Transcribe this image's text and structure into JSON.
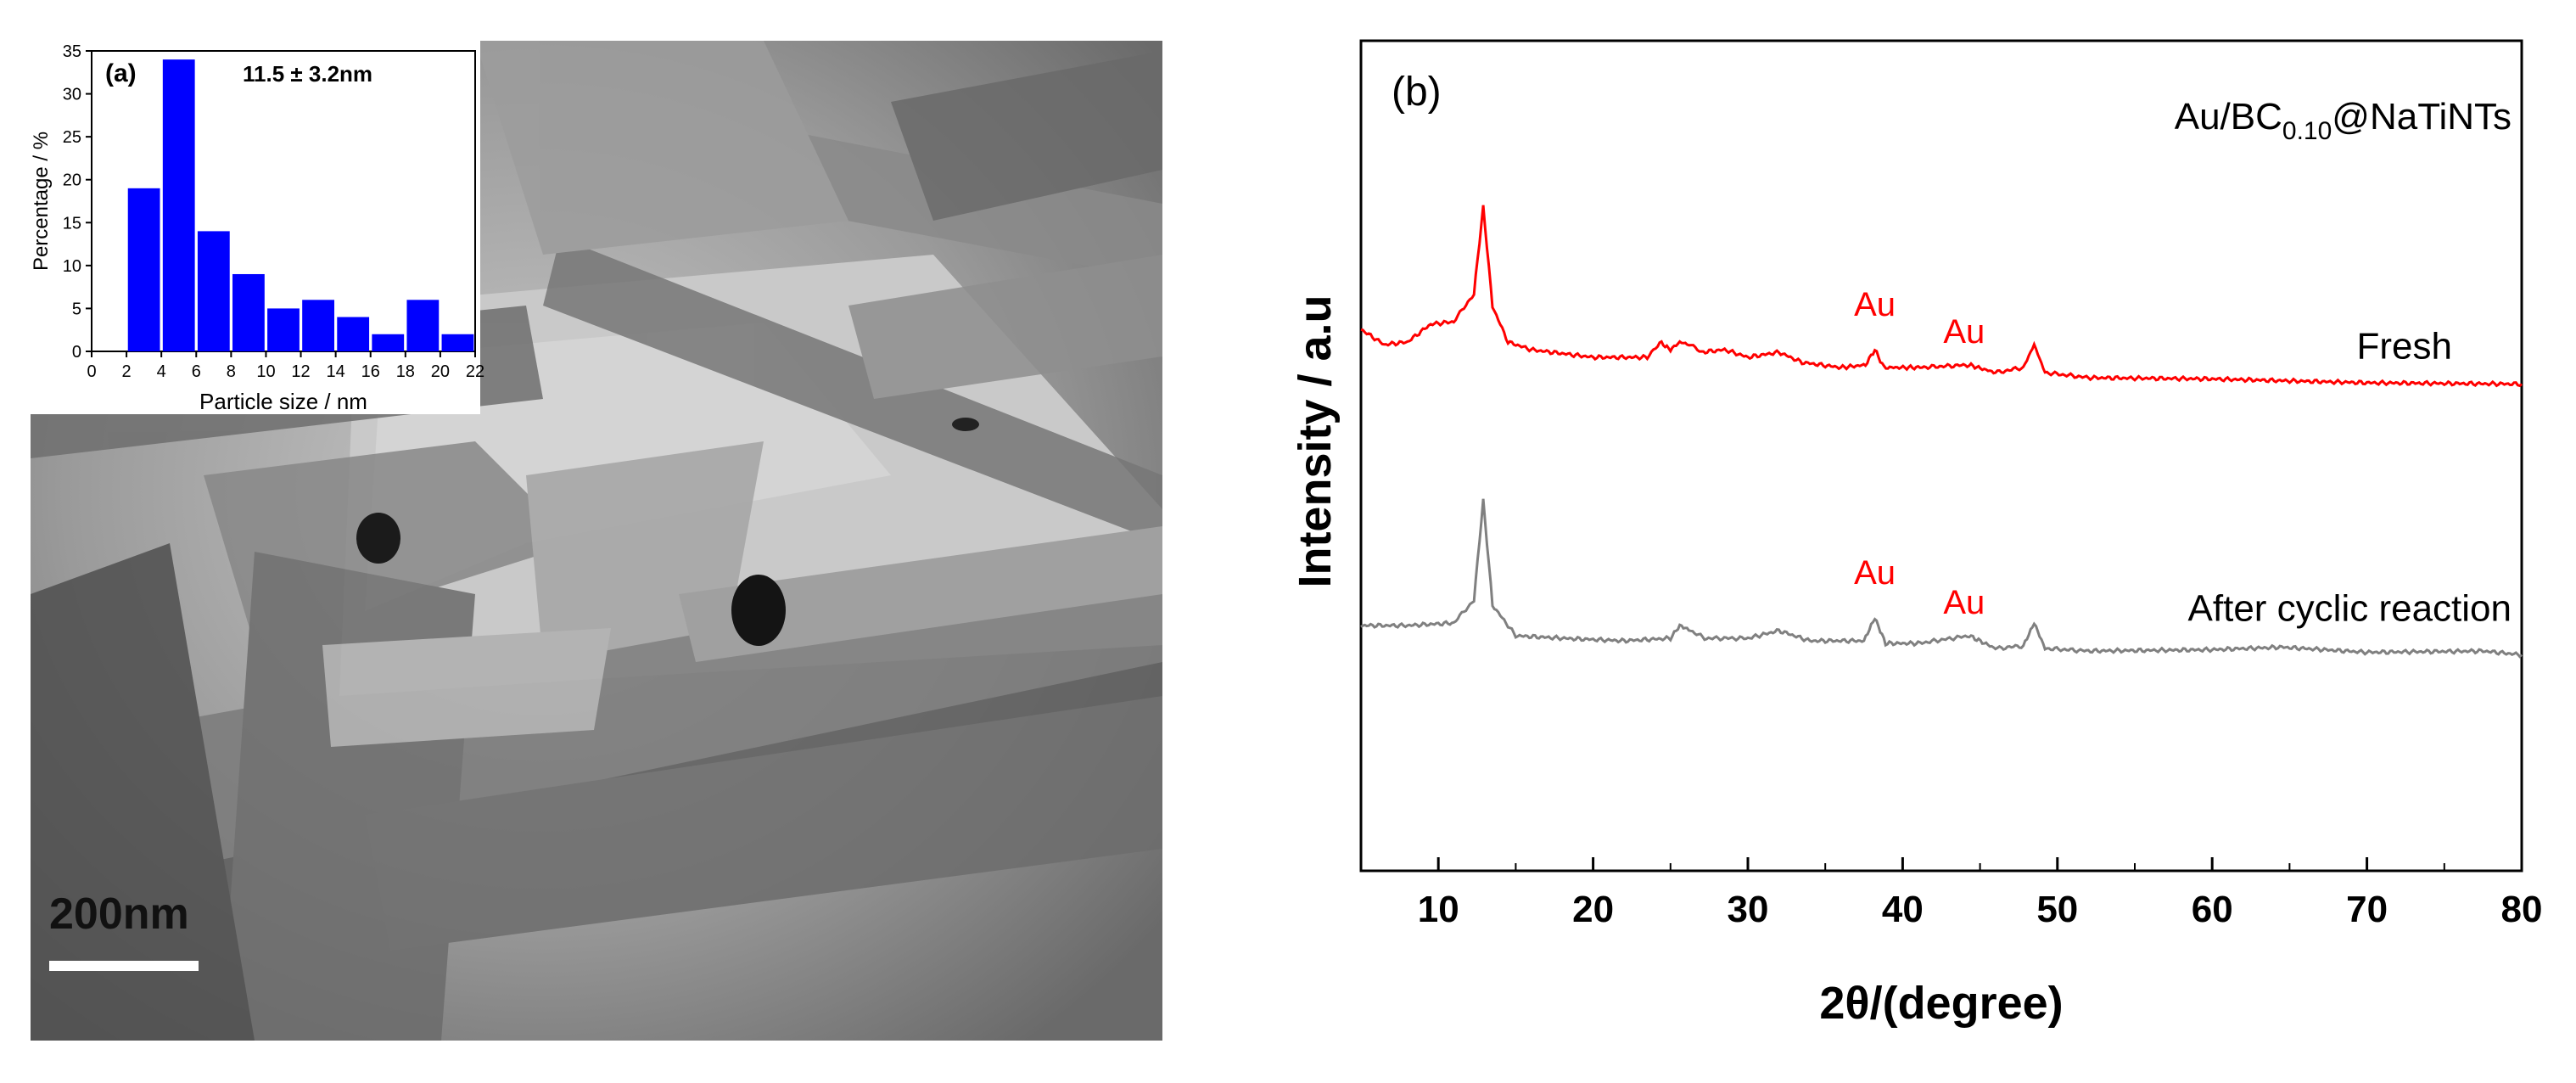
{
  "figure_a": {
    "panel_label": "(a)",
    "scale_bar_label": "200nm"
  },
  "chart_data": [
    {
      "type": "bar",
      "panel": "(a)",
      "annotation": "11.5 ± 3.2nm",
      "xlabel": "Particle size / nm",
      "ylabel": "Percentage / %",
      "x": [
        3,
        5,
        7,
        9,
        11,
        13,
        15,
        17,
        19,
        21
      ],
      "values": [
        19,
        34,
        14,
        9,
        5,
        6,
        4,
        2,
        6,
        2
      ],
      "xlim": [
        0,
        22
      ],
      "ylim": [
        0,
        35
      ],
      "xticks": [
        0,
        2,
        4,
        6,
        8,
        10,
        12,
        14,
        16,
        18,
        20,
        22
      ],
      "yticks": [
        0,
        5,
        10,
        15,
        20,
        25,
        30,
        35
      ],
      "bar_color": "#0000ff"
    },
    {
      "type": "line",
      "panel": "(b)",
      "sample_label_main": "Au/BC",
      "sample_label_sub": "0.10",
      "sample_label_suffix": "@NaTiNTs",
      "xlabel": "2θ/(degree)",
      "ylabel": "Intensity / a.u",
      "xlim": [
        5,
        80
      ],
      "xticks": [
        10,
        20,
        30,
        40,
        50,
        60,
        70,
        80
      ],
      "yticks_shown": false,
      "series": [
        {
          "name": "Fresh",
          "color": "#ff0000",
          "peak_labels": [
            {
              "text": "Au",
              "x": 38.2
            },
            {
              "text": "Au",
              "x": 44.3
            }
          ],
          "x": [
            5,
            6.5,
            8,
            9.5,
            11,
            12.3,
            12.9,
            13.5,
            14.5,
            16,
            20,
            23.5,
            24.3,
            25,
            25.6,
            26.2,
            27,
            28.5,
            30,
            32,
            33.5,
            36,
            37.6,
            38.2,
            38.8,
            41,
            44.3,
            46,
            47.8,
            48.5,
            49.2,
            52,
            60,
            70,
            80
          ],
          "y": [
            2.4,
            1.8,
            1.9,
            2.6,
            2.7,
            3.8,
            7.2,
            3.3,
            1.9,
            1.6,
            1.3,
            1.3,
            1.9,
            1.6,
            1.9,
            1.8,
            1.5,
            1.6,
            1.3,
            1.5,
            1.1,
            0.9,
            1.0,
            1.6,
            0.9,
            0.9,
            1.0,
            0.7,
            0.9,
            1.8,
            0.7,
            0.5,
            0.45,
            0.3,
            0.25
          ]
        },
        {
          "name": "After cyclic reaction",
          "color": "#808080",
          "peak_labels": [
            {
              "text": "Au",
              "x": 38.2
            },
            {
              "text": "Au",
              "x": 44.3
            }
          ],
          "x": [
            5,
            8,
            11,
            12.3,
            12.9,
            13.5,
            15,
            18,
            22,
            25,
            25.6,
            26.3,
            27.2,
            30,
            32,
            34,
            37.5,
            38.2,
            38.9,
            41,
            44.3,
            46,
            47.8,
            48.5,
            49.2,
            52,
            60,
            64.5,
            70,
            77.5,
            80
          ],
          "y": [
            2.3,
            2.3,
            2.4,
            3.3,
            7.2,
            3.1,
            1.9,
            1.8,
            1.7,
            1.8,
            2.3,
            2.1,
            1.8,
            1.8,
            2.1,
            1.7,
            1.7,
            2.6,
            1.6,
            1.6,
            1.9,
            1.4,
            1.5,
            2.4,
            1.4,
            1.3,
            1.35,
            1.45,
            1.25,
            1.3,
            1.15
          ]
        }
      ]
    }
  ]
}
